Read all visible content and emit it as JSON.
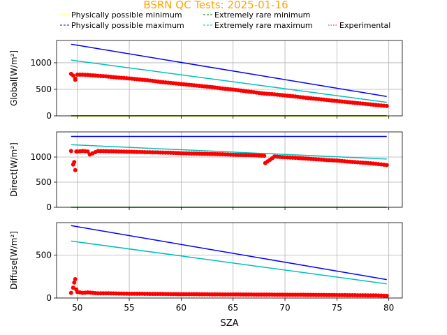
{
  "title": "BSRN QC Tests: 2025-01-16",
  "title_color": "#FFA500",
  "chart_data": [
    {
      "type": "scatter",
      "ylabel": "Global[W/m²]",
      "xlim": [
        48,
        81.3
      ],
      "ylim": [
        0,
        1420
      ],
      "yticks": [
        0,
        500,
        1000
      ],
      "grid": true,
      "series": [
        {
          "name": "Physically possible minimum",
          "kind": "line",
          "color": "#FFFF00",
          "x": [
            49.4,
            79.8
          ],
          "y": [
            -4,
            -4
          ]
        },
        {
          "name": "Physically possible maximum",
          "kind": "line",
          "color": "#0000FF",
          "x": [
            49.4,
            79.8
          ],
          "y": [
            1350,
            365
          ]
        },
        {
          "name": "Extremely rare minimum",
          "kind": "line",
          "color": "#008000",
          "x": [
            49.4,
            79.8
          ],
          "y": [
            2,
            2
          ]
        },
        {
          "name": "Extremely rare maximum",
          "kind": "line",
          "color": "#00BFBF",
          "x": [
            49.4,
            79.8
          ],
          "y": [
            1050,
            255
          ]
        },
        {
          "name": "Experimental",
          "kind": "points",
          "color": "#FF0000",
          "x": [
            49.4,
            49.6,
            49.8,
            49.8,
            50,
            50.5,
            51,
            52,
            53,
            54,
            55,
            56,
            57,
            58,
            59,
            60,
            61,
            62,
            63,
            64,
            65,
            66,
            67,
            68,
            69,
            70,
            71,
            72,
            73,
            74,
            75,
            76,
            77,
            78,
            79,
            79.8
          ],
          "y": [
            790,
            760,
            700,
            680,
            775,
            775,
            770,
            755,
            740,
            720,
            705,
            685,
            665,
            640,
            620,
            600,
            580,
            560,
            540,
            515,
            495,
            470,
            445,
            420,
            405,
            385,
            365,
            340,
            320,
            300,
            280,
            260,
            240,
            220,
            200,
            185
          ]
        }
      ]
    },
    {
      "type": "scatter",
      "ylabel": "Direct[W/m²]",
      "xlim": [
        48,
        81.3
      ],
      "ylim": [
        0,
        1500
      ],
      "yticks": [
        0,
        500,
        1000
      ],
      "grid": true,
      "series": [
        {
          "name": "Physically possible maximum",
          "kind": "line",
          "color": "#0000FF",
          "x": [
            49.4,
            79.8
          ],
          "y": [
            1410,
            1410
          ]
        },
        {
          "name": "Extremely rare maximum",
          "kind": "line",
          "color": "#00BFBF",
          "x": [
            49.4,
            79.8
          ],
          "y": [
            1245,
            960
          ]
        },
        {
          "name": "Extremely rare minimum",
          "kind": "line",
          "color": "#008000",
          "x": [
            49.4,
            79.8
          ],
          "y": [
            0,
            0
          ]
        },
        {
          "name": "Experimental",
          "kind": "points",
          "color": "#FF0000",
          "x": [
            49.4,
            49.6,
            49.7,
            49.8,
            49.9,
            50,
            50.5,
            51,
            51.2,
            52,
            53,
            54,
            55,
            56,
            57,
            58,
            59,
            60,
            61,
            62,
            63,
            64,
            65,
            66,
            67,
            68,
            68.1,
            69,
            70,
            71,
            72,
            73,
            74,
            75,
            76,
            77,
            78,
            79,
            79.8
          ],
          "y": [
            1120,
            850,
            900,
            740,
            1110,
            1110,
            1120,
            1110,
            1050,
            1120,
            1115,
            1110,
            1105,
            1100,
            1095,
            1090,
            1085,
            1075,
            1070,
            1065,
            1060,
            1055,
            1045,
            1040,
            1035,
            1025,
            880,
            1010,
            995,
            985,
            970,
            955,
            940,
            930,
            910,
            895,
            880,
            860,
            840
          ]
        }
      ]
    },
    {
      "type": "scatter",
      "ylabel": "Diffuse[W/m²]",
      "xlabel": "SZA",
      "xlim": [
        48,
        81.3
      ],
      "ylim": [
        0,
        880
      ],
      "yticks": [
        0,
        500
      ],
      "xticks": [
        50,
        55,
        60,
        65,
        70,
        75,
        80
      ],
      "grid": true,
      "series": [
        {
          "name": "Physically possible maximum",
          "kind": "line",
          "color": "#0000FF",
          "x": [
            49.4,
            79.8
          ],
          "y": [
            845,
            215
          ]
        },
        {
          "name": "Extremely rare maximum",
          "kind": "line",
          "color": "#00BFBF",
          "x": [
            49.4,
            79.8
          ],
          "y": [
            665,
            165
          ]
        },
        {
          "name": "Experimental",
          "kind": "points",
          "color": "#FF0000",
          "x": [
            49.4,
            49.6,
            49.7,
            49.8,
            49.9,
            50,
            50.5,
            51,
            52,
            53,
            54,
            55,
            56,
            57,
            58,
            59,
            60,
            61,
            62,
            63,
            64,
            65,
            66,
            67,
            68,
            69,
            70,
            71,
            72,
            73,
            74,
            75,
            76,
            77,
            78,
            79,
            79.8
          ],
          "y": [
            60,
            120,
            180,
            220,
            100,
            70,
            60,
            65,
            55,
            55,
            52,
            50,
            50,
            48,
            48,
            46,
            45,
            45,
            44,
            43,
            42,
            42,
            41,
            40,
            40,
            39,
            38,
            38,
            37,
            36,
            35,
            34,
            33,
            32,
            31,
            30,
            25
          ]
        }
      ]
    }
  ],
  "legend": {
    "placement": "top",
    "items": [
      {
        "label": "Physically possible minimum",
        "color": "#FFFF00",
        "style": "dashed"
      },
      {
        "label": "Extremely rare minimum",
        "color": "#008000",
        "style": "dashed"
      },
      {
        "label": "Physically possible maximum",
        "color": "#0000FF",
        "style": "dashed"
      },
      {
        "label": "Extremely rare maximum",
        "color": "#00BFBF",
        "style": "dashed"
      },
      {
        "label": "Experimental",
        "color": "#FF0000",
        "style": "dotted"
      }
    ]
  }
}
